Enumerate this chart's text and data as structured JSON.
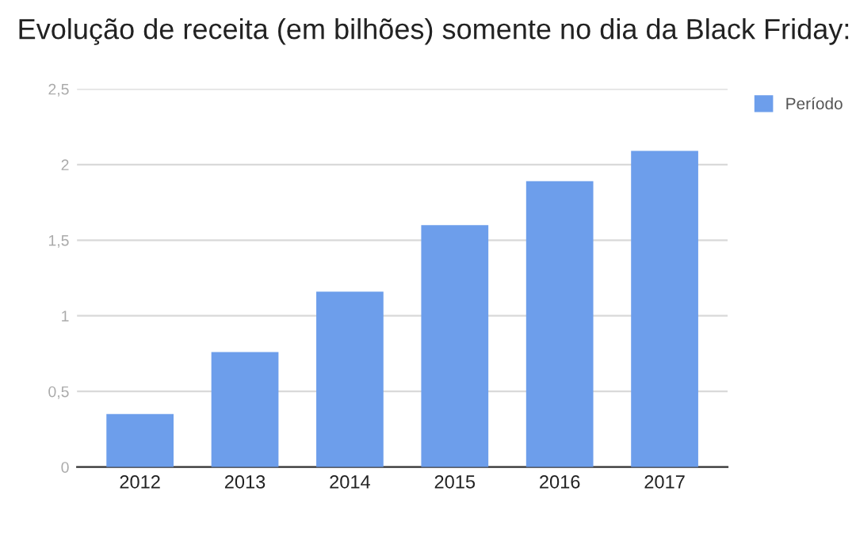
{
  "chart_data": {
    "type": "bar",
    "title": "Evolução de receita (em bilhões) somente no dia da Black Friday:",
    "categories": [
      "2012",
      "2013",
      "2014",
      "2015",
      "2016",
      "2017"
    ],
    "series": [
      {
        "name": "Período",
        "color": "#6d9eeb",
        "values": [
          0.35,
          0.76,
          1.16,
          1.6,
          1.89,
          2.09
        ]
      }
    ],
    "ylim": [
      0,
      2.5
    ],
    "yticks": [
      0,
      {
        "value": 0.5,
        "label": "0,5"
      },
      1,
      {
        "value": 1.5,
        "label": "1,5"
      },
      2,
      {
        "value": 2.5,
        "label": "2,5"
      }
    ],
    "grid": "y",
    "legend": "top right"
  }
}
